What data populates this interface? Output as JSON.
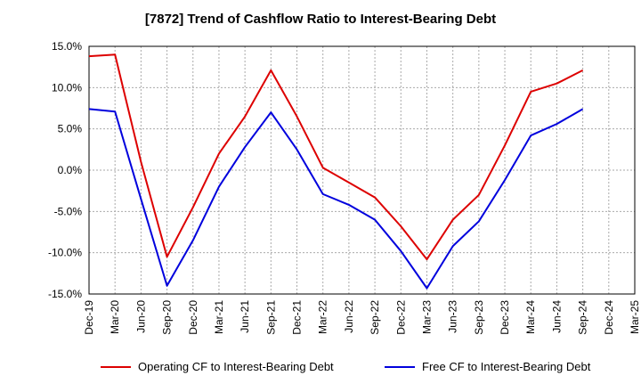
{
  "chart_data": {
    "type": "line",
    "title": "[7872]  Trend of Cashflow Ratio to Interest-Bearing Debt",
    "xlabel": "",
    "ylabel": "",
    "categories": [
      "Dec-19",
      "Mar-20",
      "Jun-20",
      "Sep-20",
      "Dec-20",
      "Mar-21",
      "Jun-21",
      "Sep-21",
      "Dec-21",
      "Mar-22",
      "Jun-22",
      "Sep-22",
      "Dec-22",
      "Mar-23",
      "Jun-23",
      "Sep-23",
      "Dec-23",
      "Mar-24",
      "Jun-24",
      "Sep-24",
      "Dec-24",
      "Mar-25"
    ],
    "ylim": [
      -15,
      15
    ],
    "yticks": [
      15,
      10,
      5,
      0,
      -5,
      -10,
      -15
    ],
    "ytick_labels": [
      "15.0%",
      "10.0%",
      "5.0%",
      "0.0%",
      "-5.0%",
      "-10.0%",
      "-15.0%"
    ],
    "grid": true,
    "legend_position": "bottom",
    "series": [
      {
        "name": "Operating CF to Interest-Bearing Debt",
        "color": "#dd0000",
        "values": [
          13.8,
          14.0,
          1.0,
          -10.5,
          -4.5,
          2.0,
          6.5,
          12.1,
          6.5,
          0.3,
          -1.5,
          -3.3,
          -6.8,
          -10.8,
          -6.0,
          -3.0,
          3.0,
          9.5,
          10.5,
          12.1,
          null,
          null
        ]
      },
      {
        "name": "Free CF to Interest-Bearing Debt",
        "color": "#0000dd",
        "values": [
          7.4,
          7.1,
          -3.5,
          -14.0,
          -8.5,
          -2.0,
          2.8,
          7.0,
          2.5,
          -2.9,
          -4.2,
          -6.0,
          -9.8,
          -14.3,
          -9.2,
          -6.2,
          -1.2,
          4.2,
          5.6,
          7.4,
          null,
          null
        ]
      }
    ]
  }
}
